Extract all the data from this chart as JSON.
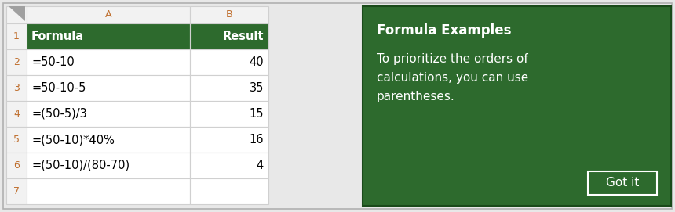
{
  "spreadsheet": {
    "bg_color": "#ffffff",
    "grid_color": "#d0d0d0",
    "col_header_bg": "#f2f2f2",
    "col_header_text_color": "#c07030",
    "row_num_bg": "#f2f2f2",
    "row_num_text_color": "#c07030",
    "header_fill_color": "#2d6a2d",
    "header_text_color": "#ffffff",
    "data_text_color": "#000000",
    "row_numbers": [
      "1",
      "2",
      "3",
      "4",
      "5",
      "6",
      "7"
    ],
    "formulas": [
      "Formula",
      "=50-10",
      "=50-10-5",
      "=(50-5)/3",
      "=(50-10)*40%",
      "=(50-10)/(80-70)",
      ""
    ],
    "results": [
      "Result",
      "40",
      "35",
      "15",
      "16",
      "4",
      ""
    ]
  },
  "info_box": {
    "bg_color": "#2d6a2d",
    "text_color": "#ffffff",
    "title": "Formula Examples",
    "body_line1": "To prioritize the orders of",
    "body_line2": "calculations, you can use",
    "body_line3": "parentheses.",
    "button_text": "Got it"
  },
  "outer_bg": "#e8e8e8",
  "outer_border_color": "#b0b0b0"
}
